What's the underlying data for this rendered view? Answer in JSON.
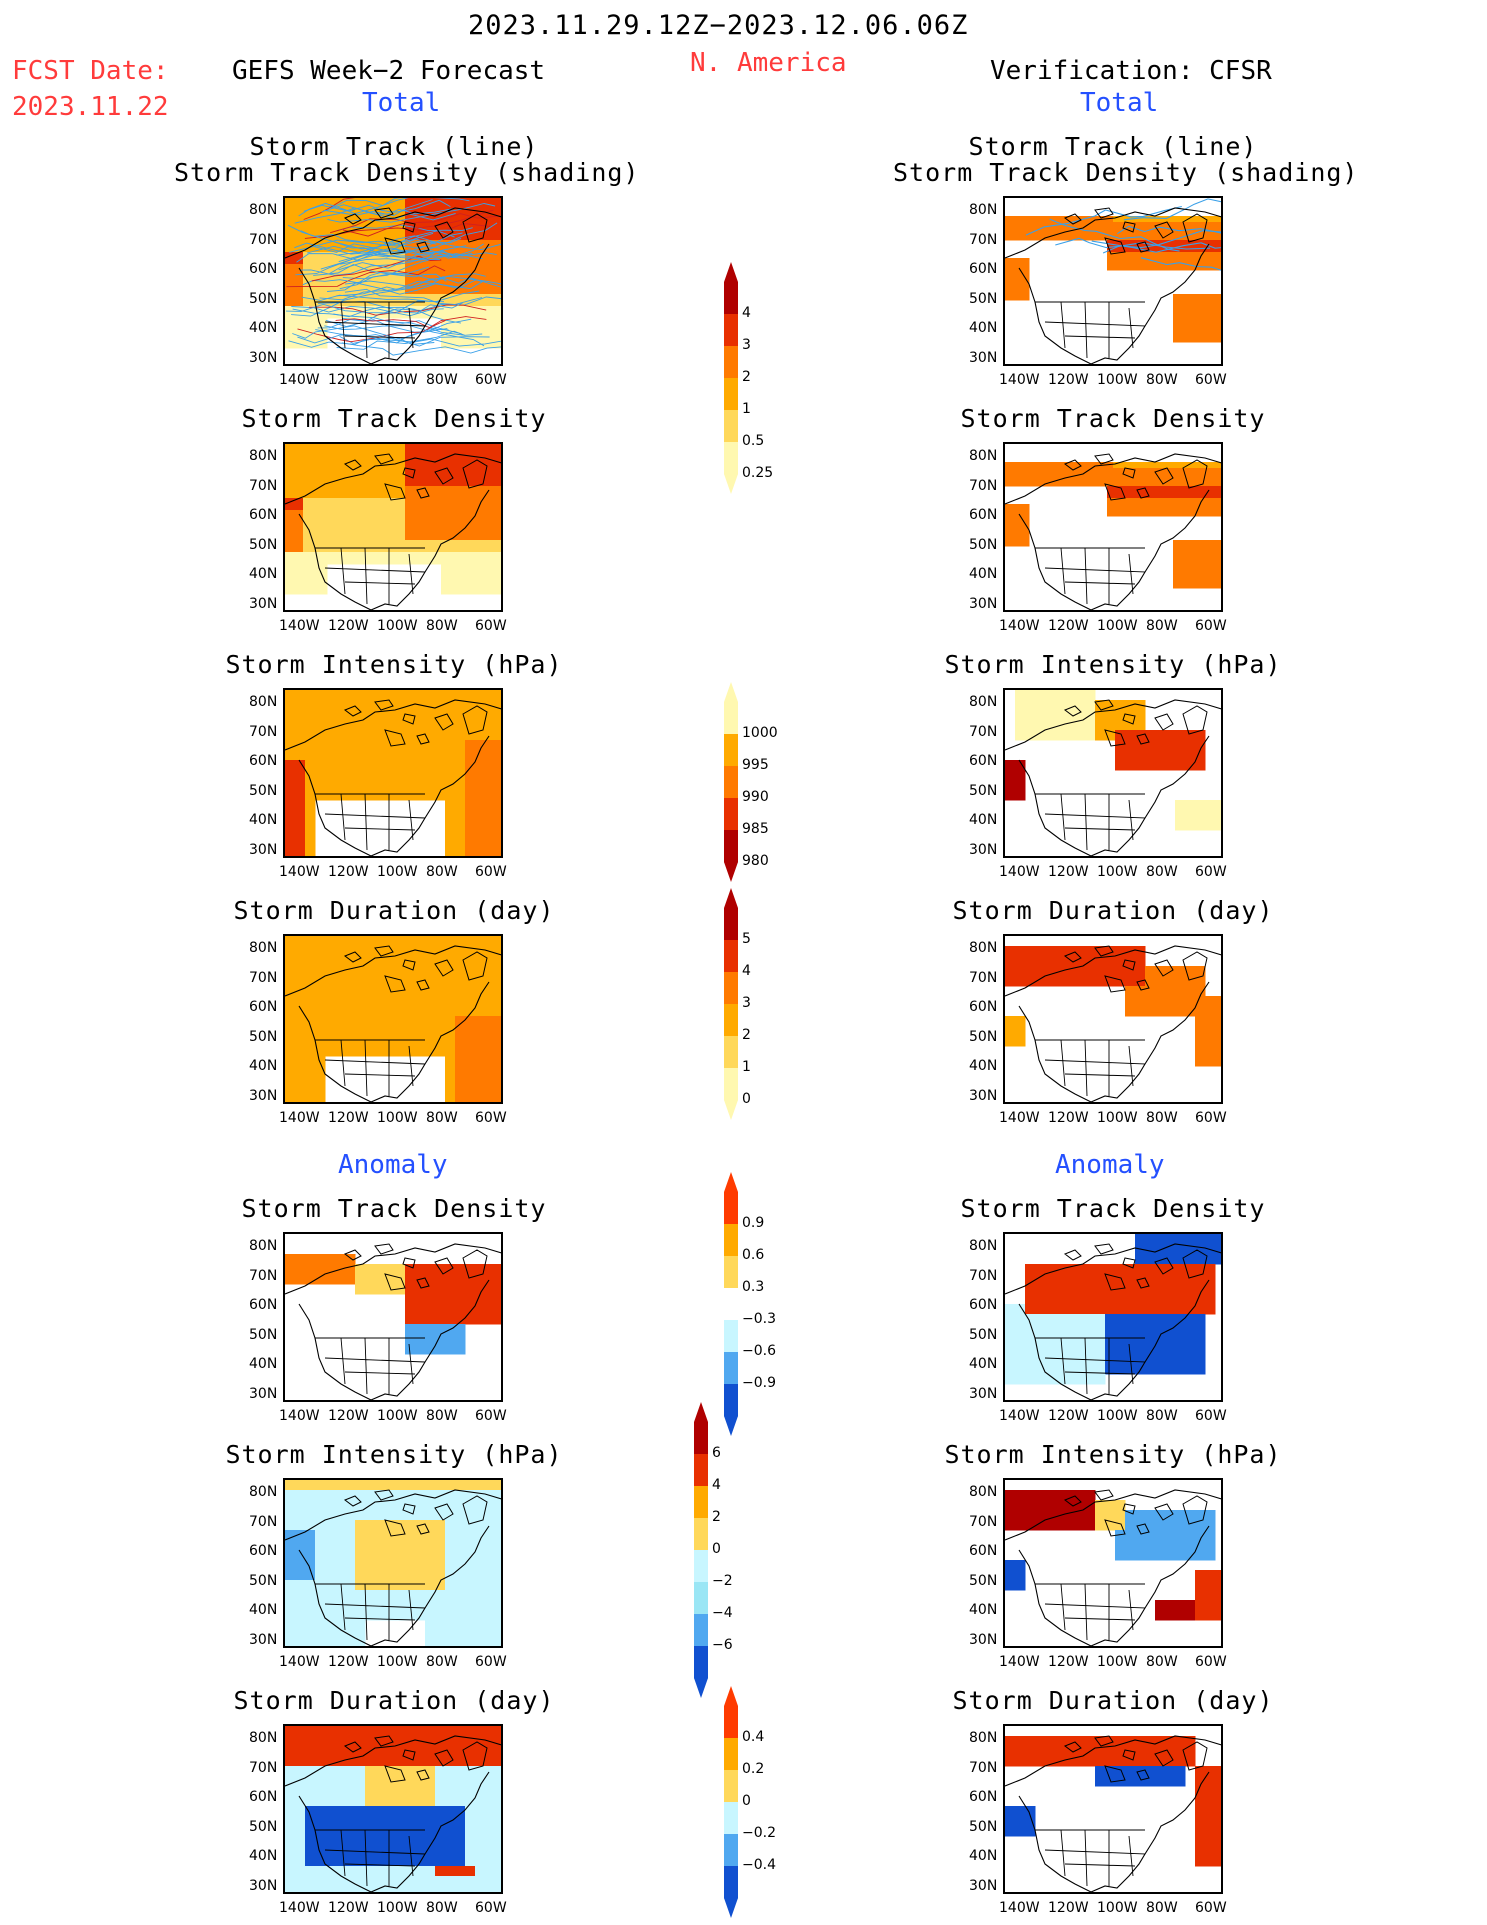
{
  "header": {
    "date_range": "2023.11.29.12Z−2023.12.06.06Z",
    "region": "N. America",
    "fcst_label": "FCST Date:",
    "fcst_date": "2023.11.22",
    "left_title": "GEFS Week−2 Forecast",
    "right_title": "Verification: CFSR",
    "section_total": "Total",
    "section_anomaly": "Anomaly"
  },
  "panels": {
    "track_title_1": "Storm Track (line)",
    "track_title_2": "Storm Track Density (shading)",
    "density": "Storm Track Density",
    "intensity": "Storm Intensity (hPa)",
    "duration": "Storm Duration (day)"
  },
  "axes": {
    "lat": [
      "80N",
      "70N",
      "60N",
      "50N",
      "40N",
      "30N"
    ],
    "lon": [
      "140W",
      "120W",
      "100W",
      "80W",
      "60W"
    ]
  },
  "colorbars": {
    "density_total": [
      "4",
      "3",
      "2",
      "1",
      "0.5",
      "0.25"
    ],
    "intensity_total": [
      "1000",
      "995",
      "990",
      "985",
      "980"
    ],
    "duration_total": [
      "5",
      "4",
      "3",
      "2",
      "1",
      "0"
    ],
    "density_anom": [
      "0.9",
      "0.6",
      "0.3",
      "−0.3",
      "−0.6",
      "−0.9"
    ],
    "intensity_anom": [
      "6",
      "4",
      "2",
      "0",
      "−2",
      "−4",
      "−6"
    ],
    "duration_anom": [
      "0.4",
      "0.2",
      "0",
      "−0.2",
      "−0.4"
    ]
  },
  "colors": {
    "warm": [
      "#fff8b0",
      "#ffd85a",
      "#ffaa00",
      "#ff7a00",
      "#e83000",
      "#b00000"
    ],
    "cool": [
      "#c8f6ff",
      "#9ae6f5",
      "#50a8f0",
      "#1050d0"
    ],
    "track_line": "#3aa0e8",
    "header_red": "#ff3b3b",
    "header_blue": "#2450ff"
  }
}
